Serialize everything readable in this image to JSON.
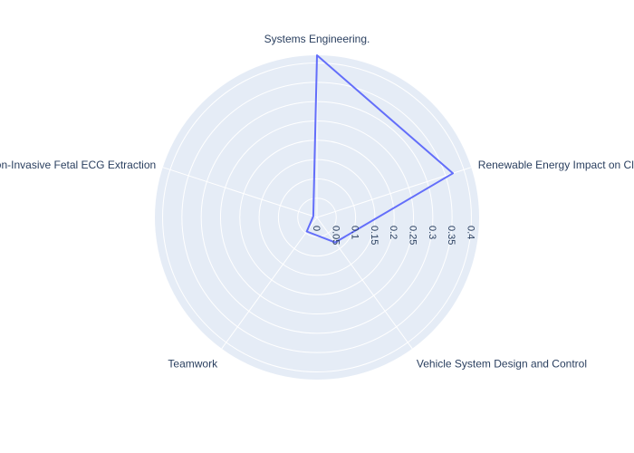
{
  "chart_data": {
    "type": "radar",
    "title": "",
    "categories": [
      "Systems Engineering.",
      "Renewable Energy Impact on Climate",
      "Vehicle System Design and Control",
      "Teamwork",
      "Non-Invasive Fetal ECG Extraction"
    ],
    "series": [
      {
        "values": [
          0.42,
          0.37,
          0.08,
          0.045,
          0.01
        ],
        "color": "#636efa"
      }
    ],
    "radial_ticks": [
      0,
      0.05,
      0.1,
      0.15,
      0.2,
      0.25,
      0.3,
      0.35,
      0.4
    ],
    "radial_range": [
      0,
      0.42
    ],
    "grid": true,
    "background_color": "#e5ecf6",
    "grid_color": "#ffffff",
    "text_color": "#2a3f5f"
  }
}
